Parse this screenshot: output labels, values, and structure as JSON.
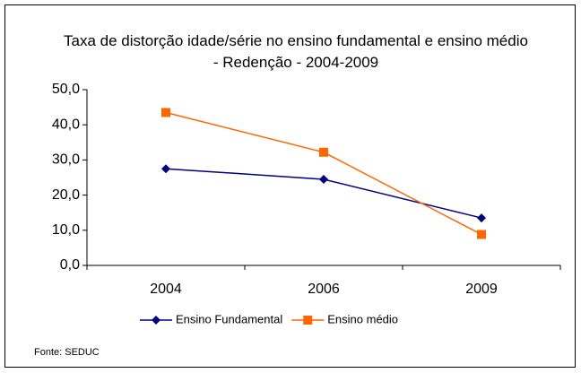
{
  "chart_data": {
    "type": "line",
    "title": "Taxa de distorção idade/série no ensino fundamental e ensino médio - Redenção -  2004-2009",
    "categories": [
      "2004",
      "2006",
      "2009"
    ],
    "series": [
      {
        "name": "Ensino Fundamental",
        "color": "#000080",
        "marker": "diamond",
        "values": [
          27.5,
          24.5,
          13.5
        ]
      },
      {
        "name": "Ensino médio",
        "color": "#ff6600",
        "marker": "square",
        "values": [
          43.5,
          32.2,
          8.8
        ]
      }
    ],
    "ylim": [
      0,
      50
    ],
    "yticks": [
      {
        "value": 0,
        "label": "0,0"
      },
      {
        "value": 10,
        "label": "10,0"
      },
      {
        "value": 20,
        "label": "20,0"
      },
      {
        "value": 30,
        "label": "30,0"
      },
      {
        "value": 40,
        "label": "40,0"
      },
      {
        "value": 50,
        "label": "50,0"
      }
    ],
    "grid": false,
    "legend": "bottom",
    "source": "Fonte: SEDUC"
  }
}
